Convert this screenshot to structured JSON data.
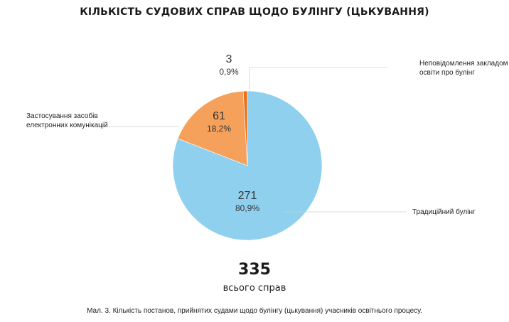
{
  "chart_data": {
    "type": "pie",
    "title": "КІЛЬКІСТЬ СУДОВИХ СПРАВ ЩОДО БУЛІНГУ (ЦЬКУВАННЯ)",
    "categories": [
      "Неповідомлення закладом освіти про булінг",
      "Застосування засобів електронних комунікацій",
      "Традиційний булінг"
    ],
    "values": [
      3,
      61,
      271
    ],
    "percent_labels": [
      "0,9%",
      "18,2%",
      "80,9%"
    ],
    "legend_lines": [
      [
        "Неповідомлення закладом",
        "освіти про булінг"
      ],
      [
        "Застосування засобів",
        "електронних комунікацій"
      ],
      [
        "Традиційний булінг"
      ]
    ],
    "colors": [
      "#e8731c",
      "#f5a15b",
      "#8fd0ee"
    ],
    "total": "335",
    "total_label": "всього справ"
  },
  "caption": "Мал. 3. Кількість постанов, прийнятих судами щодо булінгу (цькування) учасників освітнього процесу."
}
